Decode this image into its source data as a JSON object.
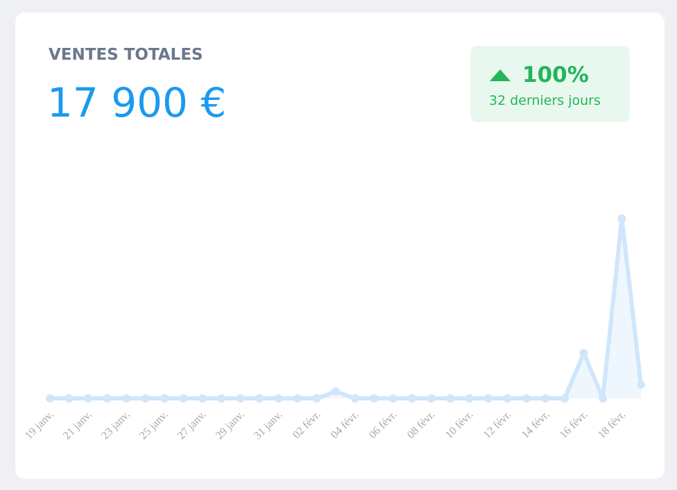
{
  "chart_data": {
    "type": "line",
    "title": "VENTES TOTALES",
    "total": "17 900 €",
    "change": "100%",
    "period": "32 derniers jours",
    "categories": [
      "19 janv.",
      null,
      "21 janv.",
      null,
      "23 janv.",
      null,
      "25 janv.",
      null,
      "27 janv.",
      null,
      "29 janv.",
      null,
      "31 janv.",
      null,
      "02 févr.",
      null,
      "04 févr.",
      null,
      "06 févr.",
      null,
      "08 févr.",
      null,
      "10 févr.",
      null,
      "12 févr.",
      null,
      "14 févr.",
      null,
      "16 févr.",
      null,
      "18 févr.",
      null
    ],
    "values": [
      0,
      0,
      0,
      0,
      0,
      0,
      0,
      0,
      0,
      0,
      0,
      0,
      0,
      0,
      0,
      500,
      0,
      0,
      0,
      0,
      0,
      0,
      0,
      0,
      0,
      0,
      0,
      0,
      3300,
      0,
      13100,
      1000
    ],
    "color": "#cfe6fb",
    "ylim": [
      0,
      14000
    ]
  }
}
